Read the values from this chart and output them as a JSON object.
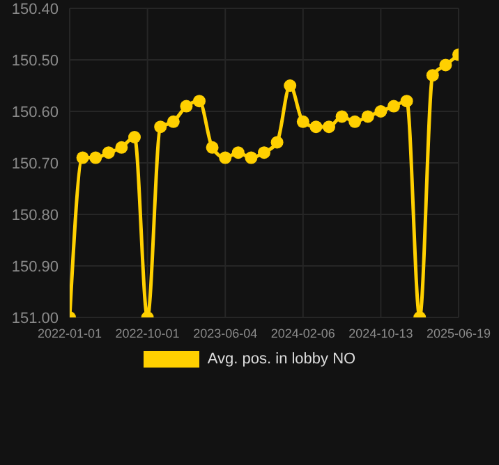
{
  "chart_data": {
    "type": "line",
    "categories": [
      "2022-01-01",
      null,
      null,
      null,
      null,
      null,
      "2022-10-01",
      null,
      null,
      null,
      null,
      null,
      "2023-06-04",
      null,
      null,
      null,
      null,
      null,
      "2024-02-06",
      null,
      null,
      null,
      null,
      null,
      "2024-10-13",
      null,
      null,
      null,
      null,
      null,
      "2025-06-19"
    ],
    "series": [
      {
        "name": "Avg. pos. in lobby NO",
        "color": "#ffd000",
        "values": [
          151.0,
          150.69,
          150.69,
          150.68,
          150.67,
          150.65,
          151.0,
          150.63,
          150.62,
          150.59,
          150.58,
          150.67,
          150.69,
          150.68,
          150.69,
          150.68,
          150.66,
          150.55,
          150.62,
          150.63,
          150.63,
          150.61,
          150.62,
          150.61,
          150.6,
          150.59,
          150.58,
          151.0,
          150.53,
          150.51,
          150.49
        ]
      }
    ],
    "ylim": [
      151.0,
      150.4
    ],
    "yticks": [
      {
        "value": 150.4,
        "label": "150.40"
      },
      {
        "value": 150.5,
        "label": "150.50"
      },
      {
        "value": 150.6,
        "label": "150.60"
      },
      {
        "value": 150.7,
        "label": "150.70"
      },
      {
        "value": 150.8,
        "label": "150.80"
      },
      {
        "value": 150.9,
        "label": "150.90"
      },
      {
        "value": 151.0,
        "label": "151.00"
      }
    ],
    "grid": true,
    "legend": "bottom",
    "marker": "circle",
    "line_style": "solid"
  }
}
